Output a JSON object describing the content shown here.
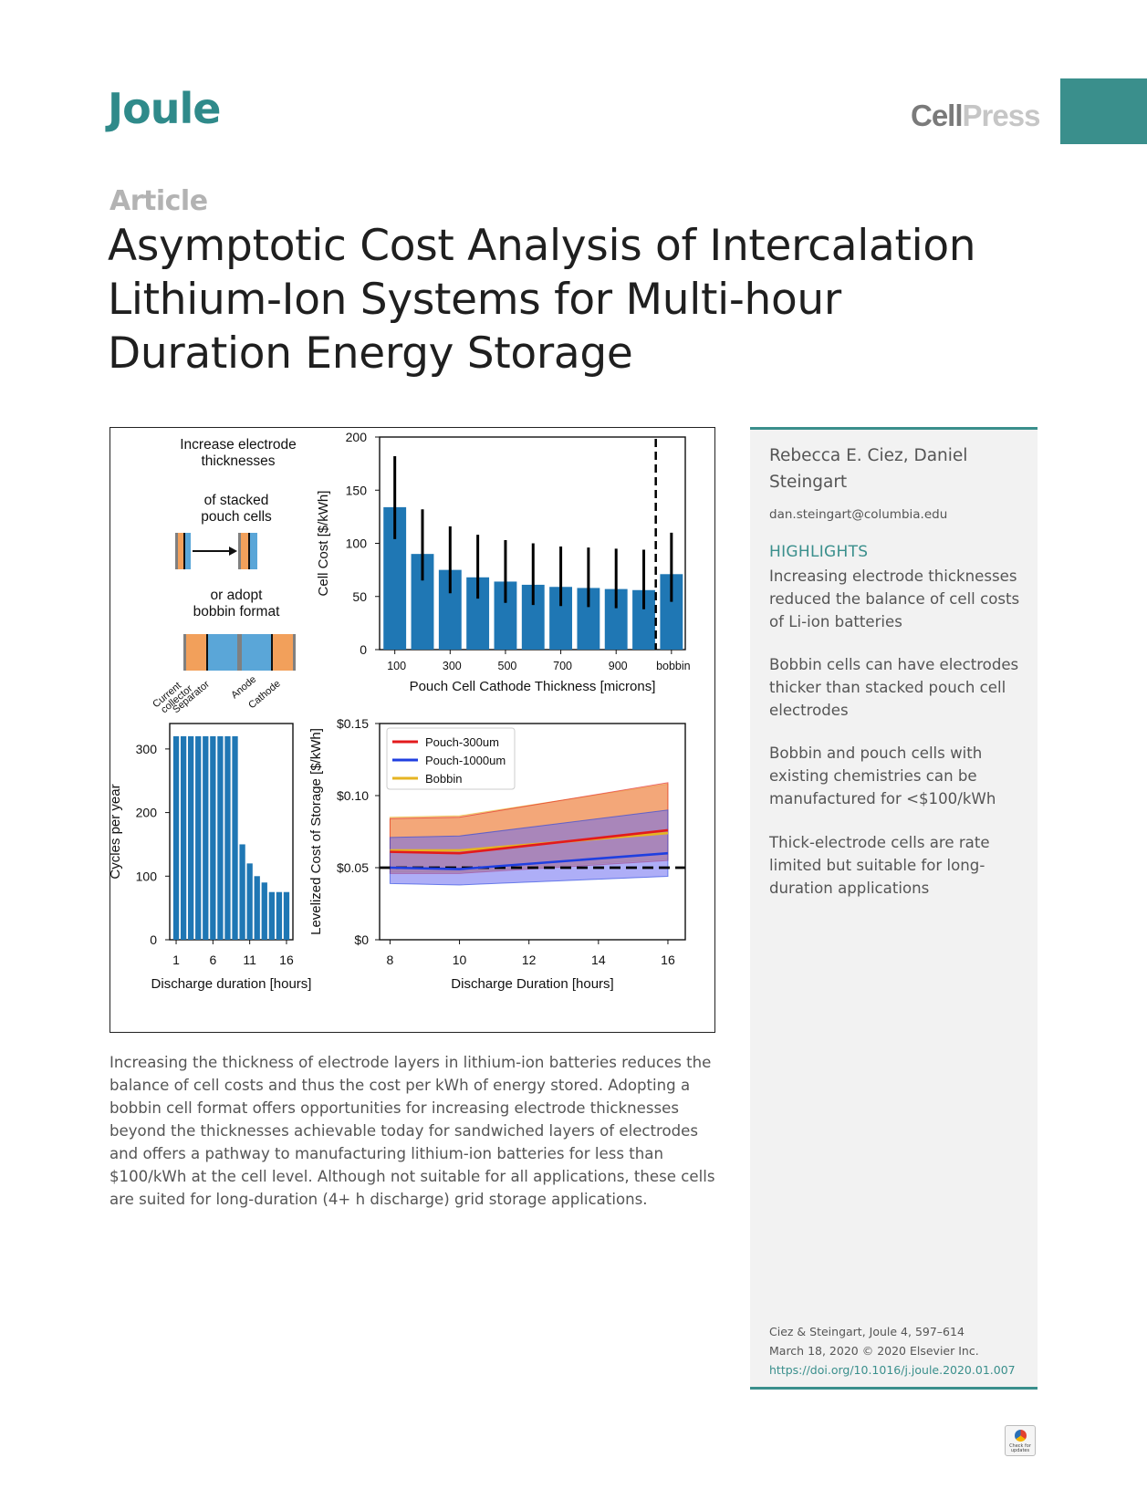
{
  "header": {
    "journal": "Joule",
    "publisher_part1": "Cell",
    "publisher_part2": "Press"
  },
  "article": {
    "type": "Article",
    "title": "Asymptotic Cost Analysis of Intercalation Lithium-Ion Systems for Multi-hour Duration Energy Storage"
  },
  "figure": {
    "schematic": {
      "line1": "Increase electrode",
      "line2": "thicknesses",
      "line3": "of stacked",
      "line4": "pouch cells",
      "line5": "or adopt",
      "line6": "bobbin format",
      "label_current_collector": "Current collector",
      "label_current": "Current",
      "label_collector": "collector",
      "label_separator": "Separator",
      "label_anode": "Anode",
      "label_cathode": "Cathode",
      "colors": {
        "cathode": "#f2a05b",
        "anode": "#5aa6d8",
        "collector": "#808080",
        "separator": "#111111"
      }
    }
  },
  "chart_data": [
    {
      "type": "bar",
      "title": "",
      "xlabel": "Pouch Cell Cathode Thickness [microns]",
      "ylabel": "Cell Cost [$/kWh]",
      "ylim": [
        0,
        200
      ],
      "yticks": [
        "0",
        "50",
        "100",
        "150",
        "200"
      ],
      "categories": [
        "100",
        "200",
        "300",
        "400",
        "500",
        "600",
        "700",
        "800",
        "900",
        "1000",
        "bobbin"
      ],
      "tick_labels": [
        "100",
        "300",
        "500",
        "700",
        "900",
        "bobbin"
      ],
      "values": [
        134,
        90,
        75,
        68,
        64,
        61,
        59,
        58,
        57,
        56,
        71
      ],
      "error_low": [
        104,
        65,
        53,
        48,
        44,
        42,
        41,
        40,
        39,
        38,
        45
      ],
      "error_high": [
        182,
        132,
        116,
        108,
        103,
        100,
        97,
        96,
        95,
        94,
        110
      ],
      "color": "#1f77b4",
      "grid": false
    },
    {
      "type": "bar",
      "title": "",
      "xlabel": "Discharge duration [hours]",
      "ylabel": "Cycles per year",
      "ylim": [
        0,
        340
      ],
      "yticks": [
        "0",
        "100",
        "200",
        "300"
      ],
      "categories": [
        1,
        2,
        3,
        4,
        5,
        6,
        7,
        8,
        9,
        10,
        11,
        12,
        13,
        14,
        15,
        16
      ],
      "tick_labels": [
        "1",
        "6",
        "11",
        "16"
      ],
      "values": [
        320,
        320,
        320,
        320,
        320,
        320,
        320,
        320,
        320,
        150,
        120,
        100,
        90,
        75,
        75,
        75
      ],
      "color": "#1f77b4",
      "grid": false
    },
    {
      "type": "line",
      "title": "",
      "xlabel": "Discharge Duration [hours]",
      "ylabel": "Levelized Cost of Storage [$/kWh]",
      "xlim": [
        7.7,
        16.5
      ],
      "ylim": [
        0,
        0.15
      ],
      "xticks": [
        "8",
        "10",
        "12",
        "14",
        "16"
      ],
      "yticks": [
        "$0",
        "$0.05",
        "$0.10",
        "$0.15"
      ],
      "legend_position": "top-left",
      "x": [
        8,
        10,
        16
      ],
      "series": [
        {
          "name": "Pouch-300um",
          "color": "#e31a1c",
          "values": [
            0.061,
            0.06,
            0.076
          ],
          "band_low": [
            0.046,
            0.046,
            0.055
          ],
          "band_high": [
            0.084,
            0.085,
            0.109
          ]
        },
        {
          "name": "Pouch-1000um",
          "color": "#1f3fe0",
          "values": [
            0.05,
            0.049,
            0.06
          ],
          "band_low": [
            0.039,
            0.038,
            0.044
          ],
          "band_high": [
            0.071,
            0.072,
            0.09
          ]
        },
        {
          "name": "Bobbin",
          "color": "#e6b422",
          "values": [
            0.062,
            0.062,
            0.074
          ],
          "band_low": [
            0.047,
            0.047,
            0.056
          ],
          "band_high": [
            0.085,
            0.086,
            0.108
          ]
        }
      ],
      "reference_line": 0.05
    }
  ],
  "abstract": "Increasing the thickness of electrode layers in lithium-ion batteries reduces the balance of cell costs and thus the cost per kWh of energy stored. Adopting a bobbin cell format offers opportunities for increasing electrode thicknesses beyond the thicknesses achievable today for sandwiched layers of electrodes and offers a pathway to manufacturing lithium-ion batteries for less than $100/kWh at the cell level. Although not suitable for all applications, these cells are suited for long-duration (4+ h discharge) grid storage applications.",
  "sidebar": {
    "authors": "Rebecca E. Ciez, Daniel Steingart",
    "email": "dan.steingart@columbia.edu",
    "highlights_heading": "HIGHLIGHTS",
    "highlights": [
      "Increasing electrode thicknesses reduced the balance of cell costs of Li-ion batteries",
      "Bobbin cells can have electrodes thicker than stacked pouch cell electrodes",
      "Bobbin and pouch cells with existing chemistries can be manufactured for <$100/kWh",
      "Thick-electrode cells are rate limited but suitable for long-duration applications"
    ],
    "citation_line1": "Ciez & Steingart, Joule 4, 597–614",
    "citation_line2": "March 18, 2020 © 2020 Elsevier Inc.",
    "doi": "https://doi.org/10.1016/j.joule.2020.01.007"
  },
  "badge": {
    "line1": "Check for",
    "line2": "updates"
  }
}
